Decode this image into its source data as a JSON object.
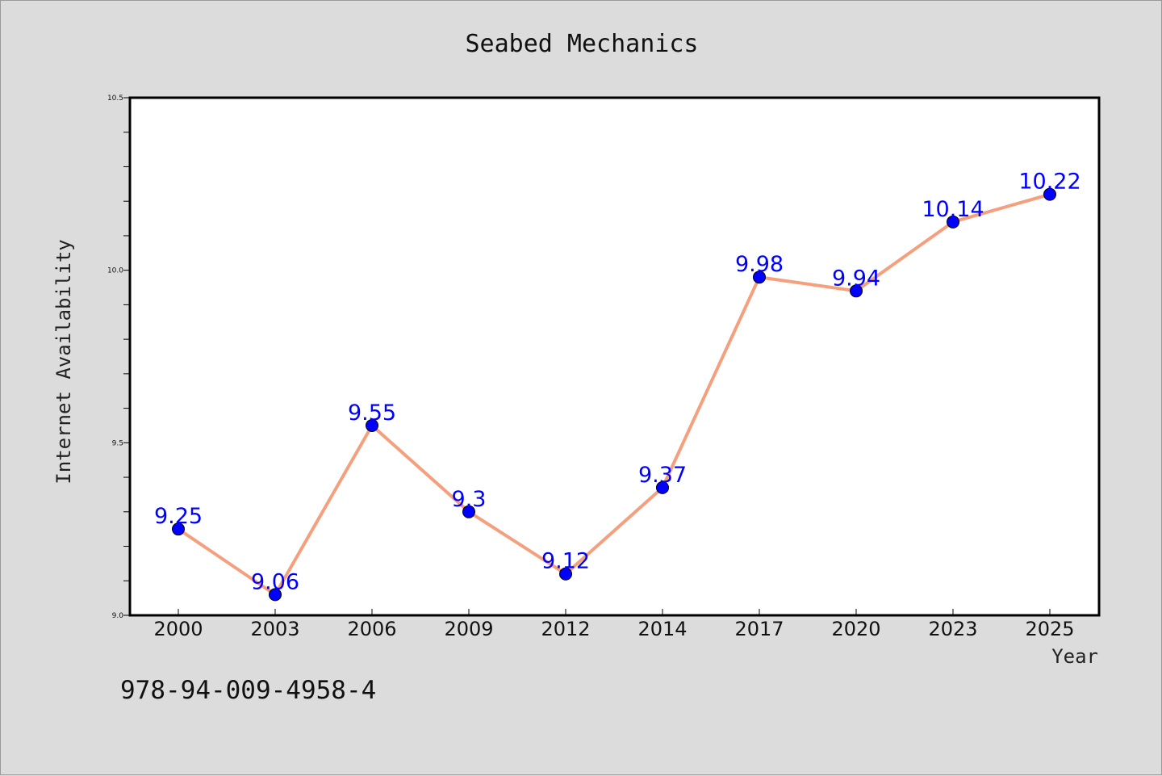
{
  "chart_data": {
    "type": "line",
    "title": "Seabed Mechanics",
    "xlabel": "Year",
    "ylabel": "Internet Availability",
    "categories": [
      "2000",
      "2003",
      "2006",
      "2009",
      "2012",
      "2014",
      "2017",
      "2020",
      "2023",
      "2025"
    ],
    "series": [
      {
        "values": [
          9.25,
          9.06,
          9.55,
          9.3,
          9.12,
          9.37,
          9.98,
          9.94,
          10.14,
          10.22
        ],
        "data_labels": [
          "9.25",
          "9.06",
          "9.55",
          "9.3",
          "9.12",
          "9.37",
          "9.98",
          "9.94",
          "10.14",
          "10.22"
        ],
        "line_color": "#f4a07e",
        "marker_color": "#0000ff"
      }
    ],
    "ylim": [
      9.0,
      10.5
    ],
    "yticks": [
      "9.0",
      "9.5",
      "10.0",
      "10.5"
    ],
    "yminor_step": 0.1,
    "grid": false,
    "legend": "none"
  },
  "footer": {
    "isbn": "978-94-009-4958-4"
  },
  "colors": {
    "background": "#dcdcdc",
    "plot_area": "#ffffff",
    "line": "#f4a07e",
    "marker": "#0000ff",
    "data_label": "#0000ff"
  }
}
